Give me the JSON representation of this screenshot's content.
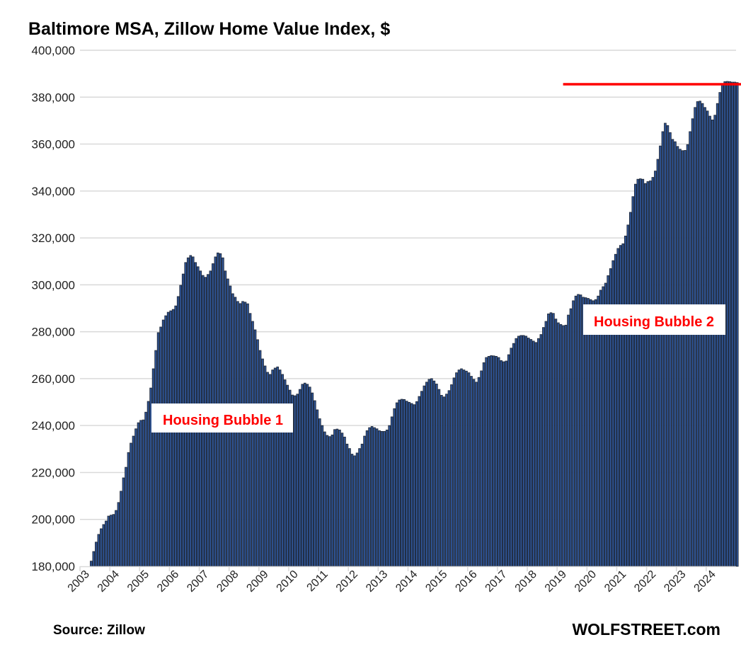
{
  "chart_data": {
    "type": "bar",
    "title": "Baltimore MSA, Zillow Home Value Index, $",
    "xlabel": "",
    "ylabel": "",
    "ylim": [
      180000,
      400000
    ],
    "y_ticks": [
      "180,000",
      "200,000",
      "220,000",
      "240,000",
      "260,000",
      "280,000",
      "300,000",
      "320,000",
      "340,000",
      "360,000",
      "380,000",
      "400,000"
    ],
    "x_ticks": [
      "2003",
      "2004",
      "2005",
      "2006",
      "2007",
      "2008",
      "2009",
      "2010",
      "2011",
      "2012",
      "2013",
      "2014",
      "2015",
      "2016",
      "2017",
      "2018",
      "2019",
      "2020",
      "2021",
      "2022",
      "2023",
      "2024"
    ],
    "grid": true,
    "legend": "none",
    "frequency": "monthly",
    "start_month": "2003-05",
    "values_unit": "thousands of $",
    "values": [
      182.2,
      186.3,
      190.3,
      193.6,
      196,
      197.8,
      199.3,
      201.4,
      201.8,
      202.1,
      203.8,
      207.2,
      212,
      217.7,
      222.2,
      228.5,
      232.5,
      235.5,
      238.6,
      241.2,
      242.2,
      242.4,
      245.7,
      250.3,
      256,
      264.2,
      272,
      279.6,
      282,
      285,
      286.8,
      288.3,
      288.9,
      289.5,
      291,
      295,
      299.8,
      304.6,
      309.5,
      311.5,
      312.5,
      311.9,
      309.5,
      307.7,
      305.9,
      304,
      303.2,
      304.4,
      305.9,
      309,
      311.9,
      313.6,
      313.3,
      311.5,
      305.9,
      302.5,
      299.5,
      296.2,
      294.7,
      292.9,
      292,
      292.9,
      292.6,
      291.9,
      287.8,
      284.4,
      280.8,
      276.6,
      272,
      268.4,
      265.4,
      262.7,
      261.8,
      263.7,
      264.5,
      265,
      263.7,
      261.8,
      259.5,
      257.2,
      255.1,
      253,
      252.7,
      253.4,
      255.4,
      257.6,
      258.1,
      257.6,
      256.4,
      253.9,
      250.6,
      246.7,
      242.9,
      240,
      237.3,
      235.8,
      235.3,
      236,
      238.3,
      238.5,
      238.1,
      236.8,
      235.1,
      232.1,
      230.2,
      227.8,
      227.1,
      228.3,
      230.2,
      232.1,
      235.5,
      237.8,
      239.1,
      239.6,
      239.1,
      238.6,
      237.8,
      237.5,
      237.5,
      238.1,
      240,
      243.7,
      247.2,
      249.7,
      250.9,
      251.2,
      251.1,
      250.4,
      249.9,
      249.4,
      248.9,
      250.2,
      252.4,
      254.6,
      256.9,
      258.5,
      259.7,
      260,
      259,
      257.7,
      255.4,
      252.9,
      252.2,
      253.4,
      254.9,
      257.4,
      260.3,
      262.5,
      263.7,
      264.2,
      263.7,
      263.2,
      262.5,
      261,
      259.7,
      258.5,
      260.5,
      263.3,
      266.8,
      269,
      269.5,
      269.8,
      269.7,
      269.5,
      269,
      267.7,
      267.2,
      267.5,
      270.2,
      273,
      275,
      277.1,
      278.1,
      278.4,
      278.4,
      278.1,
      277.3,
      276.7,
      276,
      275.4,
      277.1,
      278.8,
      281.8,
      284.4,
      287.6,
      288.1,
      287.8,
      285.4,
      283.8,
      283.1,
      282.6,
      282.8,
      287.1,
      289.8,
      293.2,
      295.2,
      295.9,
      295.7,
      294.7,
      294.5,
      294.2,
      293.7,
      293.2,
      293.7,
      295.2,
      297.7,
      299.2,
      300.7,
      303.9,
      306.9,
      310.3,
      313,
      315.5,
      316.8,
      317.5,
      320.8,
      325.5,
      330.9,
      337.6,
      342.9,
      345,
      345.2,
      345,
      343.2,
      344,
      344.3,
      345.8,
      348.5,
      353.5,
      359.2,
      365.3,
      368.9,
      367.9,
      364.9,
      362,
      361,
      359,
      357.8,
      357.2,
      357.3,
      359.8,
      365.3,
      370.8,
      375.6,
      378.1,
      378.3,
      377.3,
      375.6,
      374.1,
      371.9,
      370.3,
      372.3,
      377.3,
      382,
      385.5,
      386.6,
      386.7,
      386.6,
      386.4,
      386.4,
      386.2
    ],
    "reference_line": {
      "value": 385500,
      "from_year": 2019.2,
      "color": "#ff0000"
    },
    "annotations": [
      "Housing Bubble 1",
      "Housing Bubble 2"
    ],
    "bar_color": "#2f5597",
    "bar_edge_color": "#1f2838"
  },
  "footer": {
    "source": "Source: Zillow",
    "brand": "WOLFSTREET.com"
  }
}
